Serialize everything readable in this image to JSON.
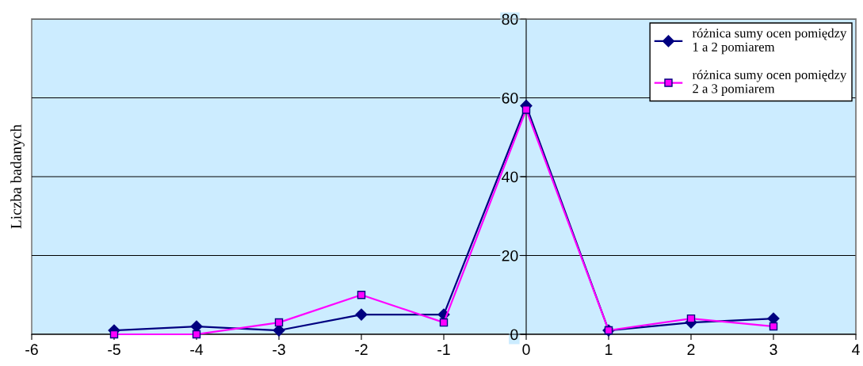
{
  "chart_data": {
    "type": "line",
    "ylabel": "Liczba badanych",
    "x": [
      -5,
      -4,
      -3,
      -2,
      -1,
      0,
      1,
      2,
      3
    ],
    "series": [
      {
        "name": "różnica sumy ocen pomiędzy\n1 a 2 pomiarem",
        "color": "#000080",
        "marker": "diamond",
        "values": [
          1,
          2,
          1,
          5,
          5,
          58,
          1,
          3,
          4
        ]
      },
      {
        "name": "różnica sumy ocen pomiędzy\n2 a 3 pomiarem",
        "color": "#ff00ff",
        "marker": "square",
        "values": [
          0,
          0,
          3,
          10,
          3,
          57,
          1,
          4,
          2
        ]
      }
    ],
    "xlim": [
      -6,
      4
    ],
    "xticks": [
      -6,
      -5,
      -4,
      -3,
      -2,
      -1,
      0,
      1,
      2,
      3,
      4
    ],
    "ylim": [
      0,
      80
    ],
    "yticks": [
      0,
      20,
      40,
      60,
      80
    ],
    "grid": "y",
    "legend": "top right"
  }
}
